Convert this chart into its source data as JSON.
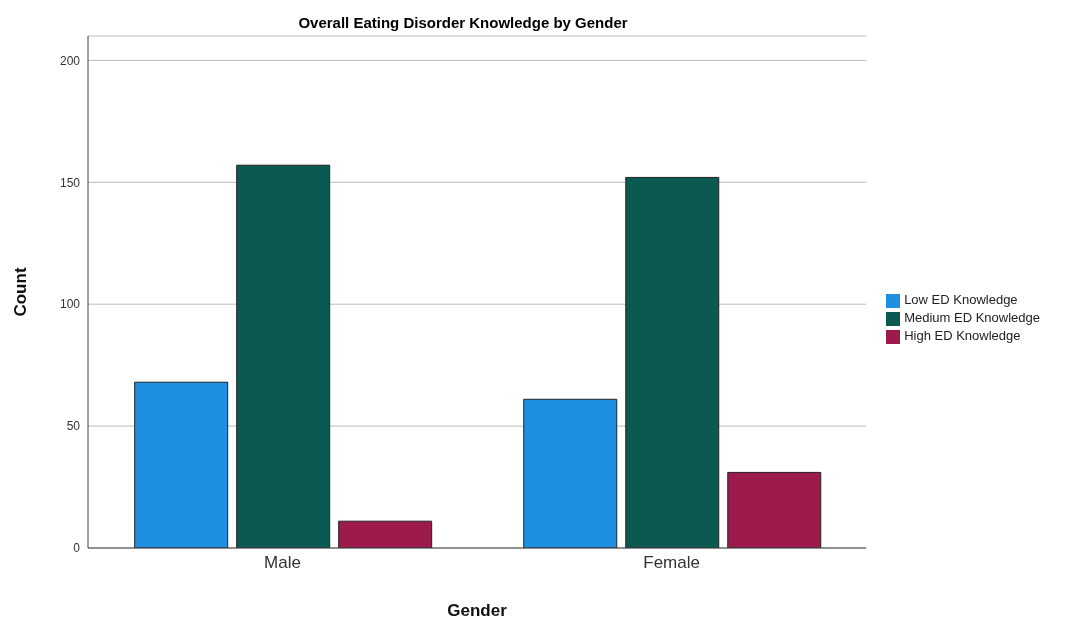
{
  "chart_data": {
    "type": "bar",
    "title": "Overall Eating Disorder Knowledge by Gender",
    "xlabel": "Gender",
    "ylabel": "Count",
    "categories": [
      "Male",
      "Female"
    ],
    "series": [
      {
        "name": "Low ED Knowledge",
        "color": "#1e8fe1",
        "values": [
          68,
          61
        ]
      },
      {
        "name": "Medium ED Knowledge",
        "color": "#0b5a52",
        "values": [
          157,
          152
        ]
      },
      {
        "name": "High ED Knowledge",
        "color": "#9c1a4c",
        "values": [
          11,
          31
        ]
      }
    ],
    "ylim": [
      0,
      210
    ],
    "yticks": [
      0,
      50,
      100,
      150,
      200
    ],
    "grid": "y",
    "legend": "right"
  }
}
